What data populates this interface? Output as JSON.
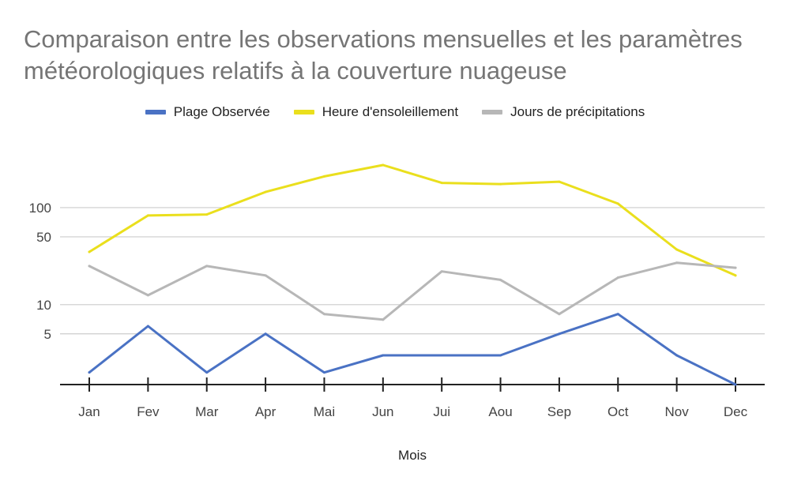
{
  "chart_data": {
    "type": "line",
    "title": "Comparaison entre les observations mensuelles et les paramètres météorologiques relatifs à la couverture nuageuse",
    "xlabel": "Mois",
    "ylabel": "",
    "y_scale": "log",
    "ylim": [
      1.5,
      400
    ],
    "y_ticks": [
      5,
      10,
      50,
      100
    ],
    "grid": true,
    "legend_position": "top",
    "categories": [
      "Jan",
      "Fev",
      "Mar",
      "Apr",
      "Mai",
      "Jun",
      "Jui",
      "Aou",
      "Sep",
      "Oct",
      "Nov",
      "Dec"
    ],
    "series": [
      {
        "name": "Plage Observée",
        "color": "#4a72c4",
        "values": [
          2,
          6,
          2,
          5,
          2,
          3,
          3,
          3,
          5,
          8,
          3,
          1.5
        ]
      },
      {
        "name": "Heure d'ensoleillement",
        "color": "#eadf1d",
        "values": [
          35,
          83,
          85,
          145,
          210,
          275,
          180,
          175,
          185,
          110,
          37,
          20
        ]
      },
      {
        "name": "Jours de précipitations",
        "color": "#b7b7b7",
        "values": [
          25,
          12.5,
          25,
          20,
          8,
          7,
          22,
          18,
          8,
          19,
          27,
          24
        ]
      }
    ]
  }
}
